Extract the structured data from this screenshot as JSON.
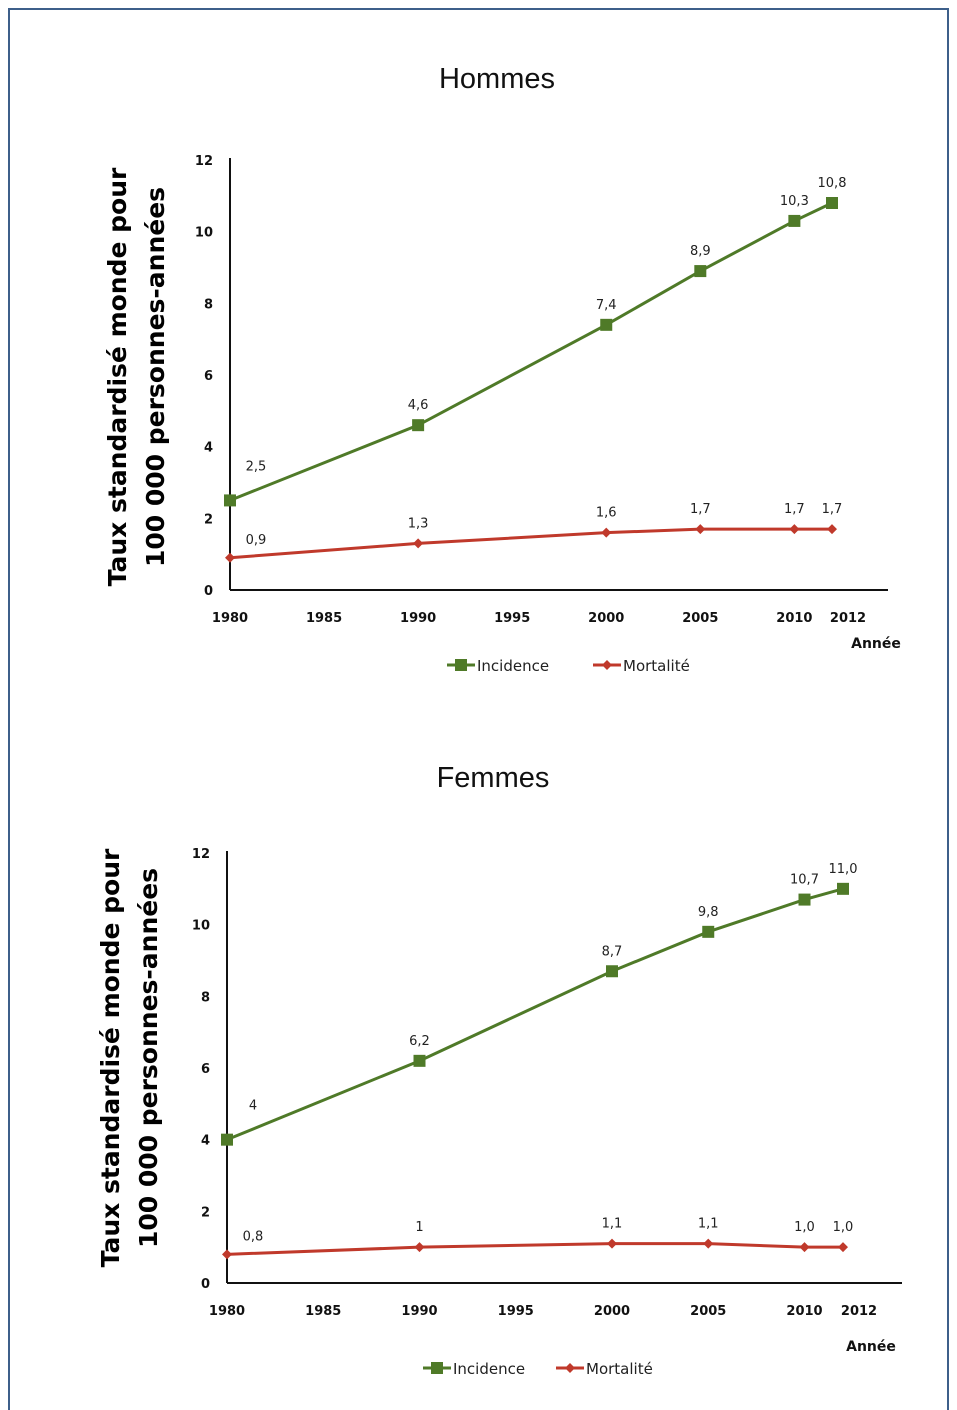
{
  "colors": {
    "incidence": "#4f7a28",
    "mortalite": "#c0392b",
    "frame": "#3d5f8a"
  },
  "chart_data": [
    {
      "type": "line",
      "title": "Hommes",
      "xlabel": "Année",
      "ylabel_line1": "Taux standardisé monde pour",
      "ylabel_line2": "100 000 personnes-années",
      "xlim": [
        1980,
        2012
      ],
      "ylim": [
        0,
        12
      ],
      "xticks": [
        1980,
        1985,
        1990,
        1995,
        2000,
        2005,
        2010,
        2012
      ],
      "yticks": [
        0,
        2,
        4,
        6,
        8,
        10,
        12
      ],
      "legend_position": "bottom",
      "series": [
        {
          "name": "Incidence",
          "marker": "square",
          "color": "#4f7a28",
          "x": [
            1980,
            1990,
            2000,
            2005,
            2010,
            2012
          ],
          "y": [
            2.5,
            4.6,
            7.4,
            8.9,
            10.3,
            10.8
          ],
          "labels": [
            "2,5",
            "4,6",
            "7,4",
            "8,9",
            "10,3",
            "10,8"
          ]
        },
        {
          "name": "Mortalité",
          "marker": "diamond",
          "color": "#c0392b",
          "x": [
            1980,
            1990,
            2000,
            2005,
            2010,
            2012
          ],
          "y": [
            0.9,
            1.3,
            1.6,
            1.7,
            1.7,
            1.7
          ],
          "labels": [
            "0,9",
            "1,3",
            "1,6",
            "1,7",
            "1,7",
            "1,7"
          ]
        }
      ]
    },
    {
      "type": "line",
      "title": "Femmes",
      "xlabel": "Année",
      "ylabel_line1": "Taux standardisé monde pour",
      "ylabel_line2": "100 000 personnes-années",
      "xlim": [
        1980,
        2012
      ],
      "ylim": [
        0,
        12
      ],
      "xticks": [
        1980,
        1985,
        1990,
        1995,
        2000,
        2005,
        2010,
        2012
      ],
      "yticks": [
        0,
        2,
        4,
        6,
        8,
        10,
        12
      ],
      "legend_position": "bottom",
      "series": [
        {
          "name": "Incidence",
          "marker": "square",
          "color": "#4f7a28",
          "x": [
            1980,
            1990,
            2000,
            2005,
            2010,
            2012
          ],
          "y": [
            4.0,
            6.2,
            8.7,
            9.8,
            10.7,
            11.0
          ],
          "labels": [
            "4",
            "6,2",
            "8,7",
            "9,8",
            "10,7",
            "11,0"
          ]
        },
        {
          "name": "Mortalité",
          "marker": "diamond",
          "color": "#c0392b",
          "x": [
            1980,
            1990,
            2000,
            2005,
            2010,
            2012
          ],
          "y": [
            0.8,
            1.0,
            1.1,
            1.1,
            1.0,
            1.0
          ],
          "labels": [
            "0,8",
            "1",
            "1,1",
            "1,1",
            "1,0",
            "1,0"
          ]
        }
      ]
    }
  ]
}
